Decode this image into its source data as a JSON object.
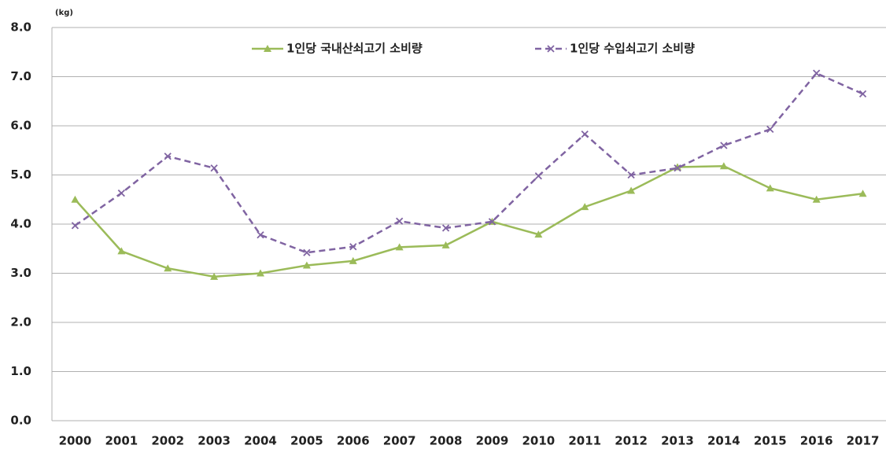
{
  "chart_data": {
    "type": "line",
    "unit_label": "(kg)",
    "categories": [
      "2000",
      "2001",
      "2002",
      "2003",
      "2004",
      "2005",
      "2006",
      "2007",
      "2008",
      "2009",
      "2010",
      "2011",
      "2012",
      "2013",
      "2014",
      "2015",
      "2016",
      "2017"
    ],
    "series": [
      {
        "name": "1인당 국내산쇠고기 소비량",
        "color": "#9bbb59",
        "line_style": "solid",
        "marker": "triangle",
        "values": [
          4.5,
          3.45,
          3.1,
          2.93,
          3.0,
          3.16,
          3.25,
          3.53,
          3.57,
          4.05,
          3.79,
          4.35,
          4.68,
          5.16,
          5.18,
          4.73,
          4.5,
          4.62
        ]
      },
      {
        "name": "1인당 수입쇠고기 소비량",
        "color": "#8064a2",
        "line_style": "dashed",
        "marker": "x",
        "values": [
          3.97,
          4.63,
          5.38,
          5.14,
          3.78,
          3.42,
          3.54,
          4.06,
          3.92,
          4.05,
          4.98,
          5.83,
          5.0,
          5.14,
          5.6,
          5.93,
          7.07,
          6.65
        ]
      }
    ],
    "ylim": [
      0,
      8
    ],
    "yticks": [
      {
        "value": 0,
        "label": "0.0"
      },
      {
        "value": 1,
        "label": "1.0"
      },
      {
        "value": 2,
        "label": "2.0"
      },
      {
        "value": 3,
        "label": "3.0"
      },
      {
        "value": 4,
        "label": "4.0"
      },
      {
        "value": 5,
        "label": "5.0"
      },
      {
        "value": 6,
        "label": "6.0"
      },
      {
        "value": 7,
        "label": "7.0"
      },
      {
        "value": 8,
        "label": "8.0"
      }
    ],
    "grid": true,
    "legend": "top"
  }
}
